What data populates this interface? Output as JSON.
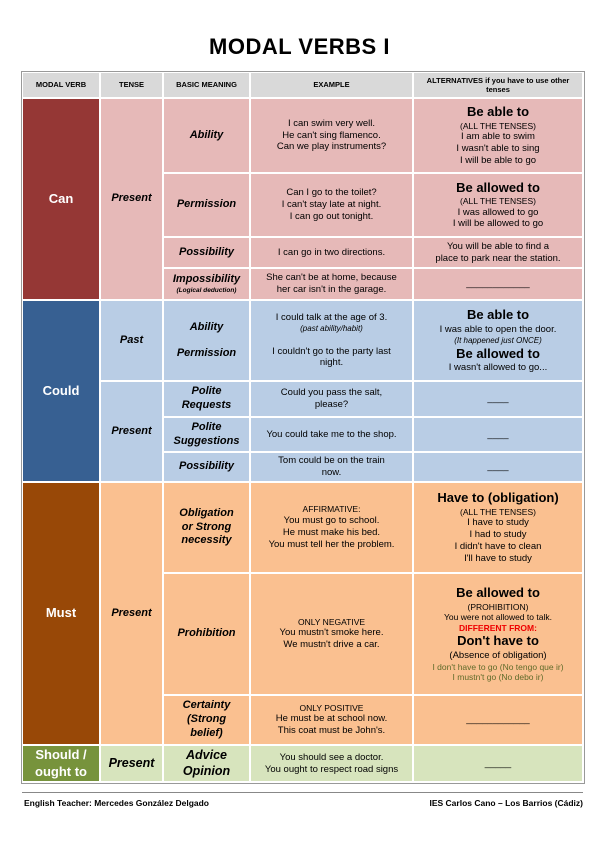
{
  "title": "MODAL VERBS I",
  "headers": [
    "MODAL VERB",
    "TENSE",
    "BASIC MEANING",
    "EXAMPLE",
    "ALTERNATIVES if you have to use other tenses"
  ],
  "cells": [
    {
      "lines": [
        "Can"
      ]
    },
    {
      "lines": [
        "Present"
      ]
    },
    {
      "lines": [
        "Ability"
      ]
    },
    {
      "lines": [
        "Permission"
      ]
    },
    {
      "lines": [
        "Possibility"
      ]
    },
    {
      "lines": [
        "Impossibility",
        "(Logical deduction)"
      ]
    },
    {
      "lines": [
        "I can swim very well.",
        "He can't sing flamenco.",
        "Can we play instruments?"
      ]
    },
    {
      "lines": [
        "Can I go to the toilet?",
        "I can't stay late at night.",
        "I can go out tonight."
      ]
    },
    {
      "lines": [
        "I can go in two directions."
      ]
    },
    {
      "lines": [
        "She can't be at home, because",
        "her car isn't in the garage."
      ]
    },
    {
      "lines": [
        "Be able to",
        "(ALL THE TENSES)",
        "I am able to swim",
        "I wasn't able to sing",
        "I will be able to go"
      ]
    },
    {
      "lines": [
        "Be allowed to",
        "(ALL THE TENSES)",
        "I was allowed to go",
        "I will be allowed to go"
      ]
    },
    {
      "lines": [
        "You will be able to find a",
        "place to park near the station."
      ]
    },
    {
      "lines": [
        "____________"
      ]
    },
    {
      "lines": [
        "Could"
      ]
    },
    {
      "lines": [
        "Past"
      ]
    },
    {
      "lines": [
        "Present"
      ]
    },
    {
      "lines": [
        "Ability",
        "Permission"
      ]
    },
    {
      "lines": [
        "Polite",
        "Requests"
      ]
    },
    {
      "lines": [
        "Polite",
        "Suggestions"
      ]
    },
    {
      "lines": [
        "Possibility"
      ]
    },
    {
      "lines": [
        "I could talk at the age of 3.",
        "(past ability/habit)",
        "I couldn't go to the party last",
        "night."
      ]
    },
    {
      "lines": [
        "Could you pass the salt,",
        "please?"
      ]
    },
    {
      "lines": [
        "You could take me to the shop."
      ]
    },
    {
      "lines": [
        "Tom could be on the train",
        "now."
      ]
    },
    {
      "lines": [
        "Be able to",
        "I was able to open the door.",
        "(It happened just ONCE)",
        "Be allowed to",
        "I wasn't allowed to go..."
      ]
    },
    {
      "lines": [
        "____"
      ]
    },
    {
      "lines": [
        "____"
      ]
    },
    {
      "lines": [
        "____"
      ]
    },
    {
      "lines": [
        "Must"
      ]
    },
    {
      "lines": [
        "Present"
      ]
    },
    {
      "lines": [
        "Obligation",
        "or Strong",
        "necessity"
      ]
    },
    {
      "lines": [
        "Prohibition"
      ]
    },
    {
      "lines": [
        "Certainty",
        "(Strong",
        "belief)"
      ]
    },
    {
      "lines": [
        "AFFIRMATIVE:",
        "You must go to school.",
        "He must make his bed.",
        "You must tell her the problem."
      ]
    },
    {
      "lines": [
        "ONLY NEGATIVE",
        "You mustn't smoke here.",
        "We mustn't drive a car."
      ]
    },
    {
      "lines": [
        "ONLY POSITIVE",
        "He must be at school now.",
        "This coat must be John's."
      ]
    },
    {
      "lines": [
        "Have to (obligation)",
        "(ALL THE TENSES)",
        "I have to study",
        "I had to study",
        "I didn't have to clean",
        "I'll have to study"
      ]
    },
    {
      "lines": [
        "Be allowed to",
        "(PROHIBITION)",
        "You were not allowed to talk.",
        "DIFFERENT FROM:",
        "Don't have to",
        "(Absence of obligation)",
        "I don't have to go (No tengo que ir)",
        "I mustn't go (No debo ir)"
      ]
    },
    {
      "lines": [
        "____________"
      ]
    },
    {
      "lines": [
        "Should /",
        "ought to"
      ]
    },
    {
      "lines": [
        "Present"
      ]
    },
    {
      "lines": [
        "Advice",
        "Opinion"
      ]
    },
    {
      "lines": [
        "You should see a doctor.",
        "You ought to respect road signs"
      ]
    },
    {
      "lines": [
        "_____"
      ]
    }
  ],
  "footer": {
    "left": "English Teacher: Mercedes González Delgado",
    "right": "IES Carlos Cano – Los Barrios (Cádiz)"
  }
}
